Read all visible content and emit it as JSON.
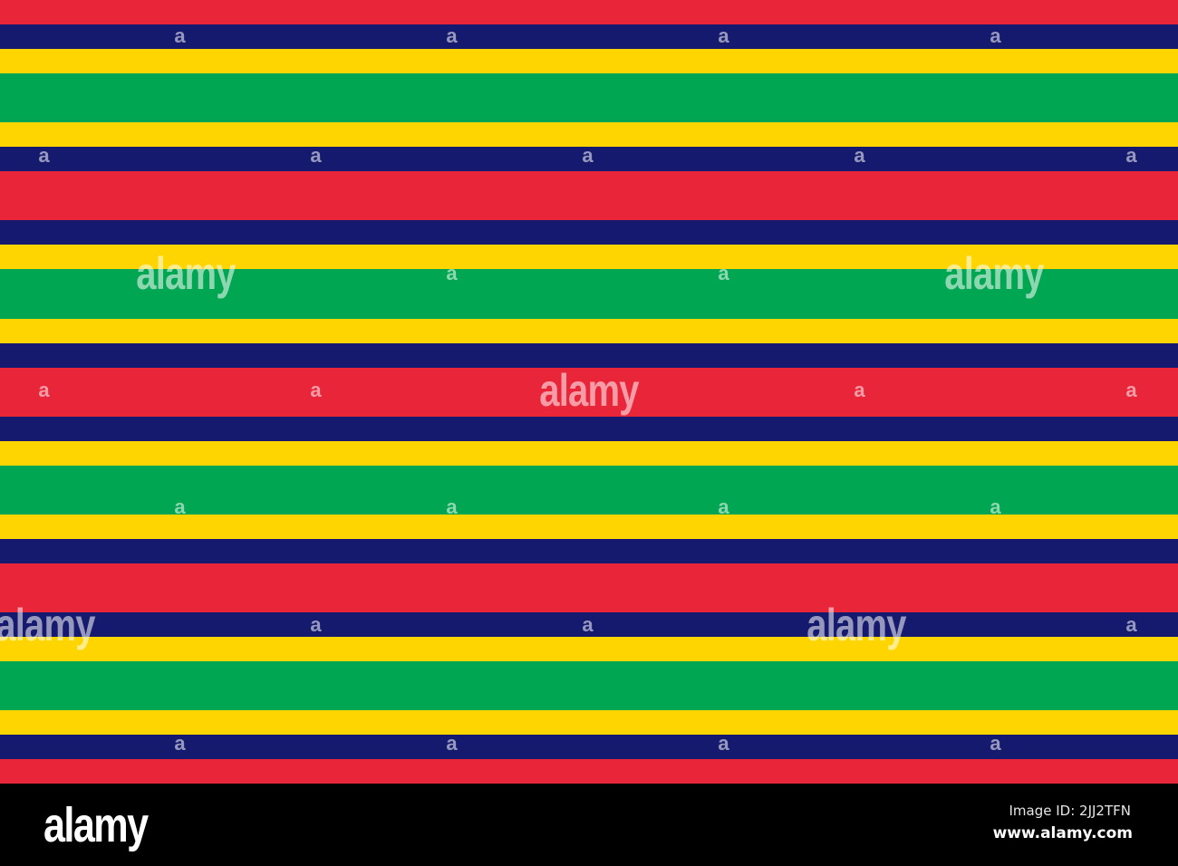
{
  "palette": {
    "red": "#E9253A",
    "navy": "#151A6E",
    "yellow": "#FFD500",
    "green": "#00A651",
    "black": "#000000"
  },
  "stripes": [
    "red",
    "navy",
    "yellow",
    "green",
    "yellow",
    "navy",
    "red",
    "navy",
    "yellow",
    "green",
    "yellow",
    "navy",
    "red",
    "navy",
    "yellow",
    "green",
    "yellow",
    "navy",
    "red",
    "navy",
    "yellow",
    "green",
    "yellow",
    "navy",
    "red"
  ],
  "watermark": {
    "small_mark": "a",
    "large_mark": "alamy"
  },
  "footer": {
    "logo": "alamy",
    "image_id": "Image ID: 2JJ2TFN",
    "website": "www.alamy.com"
  }
}
